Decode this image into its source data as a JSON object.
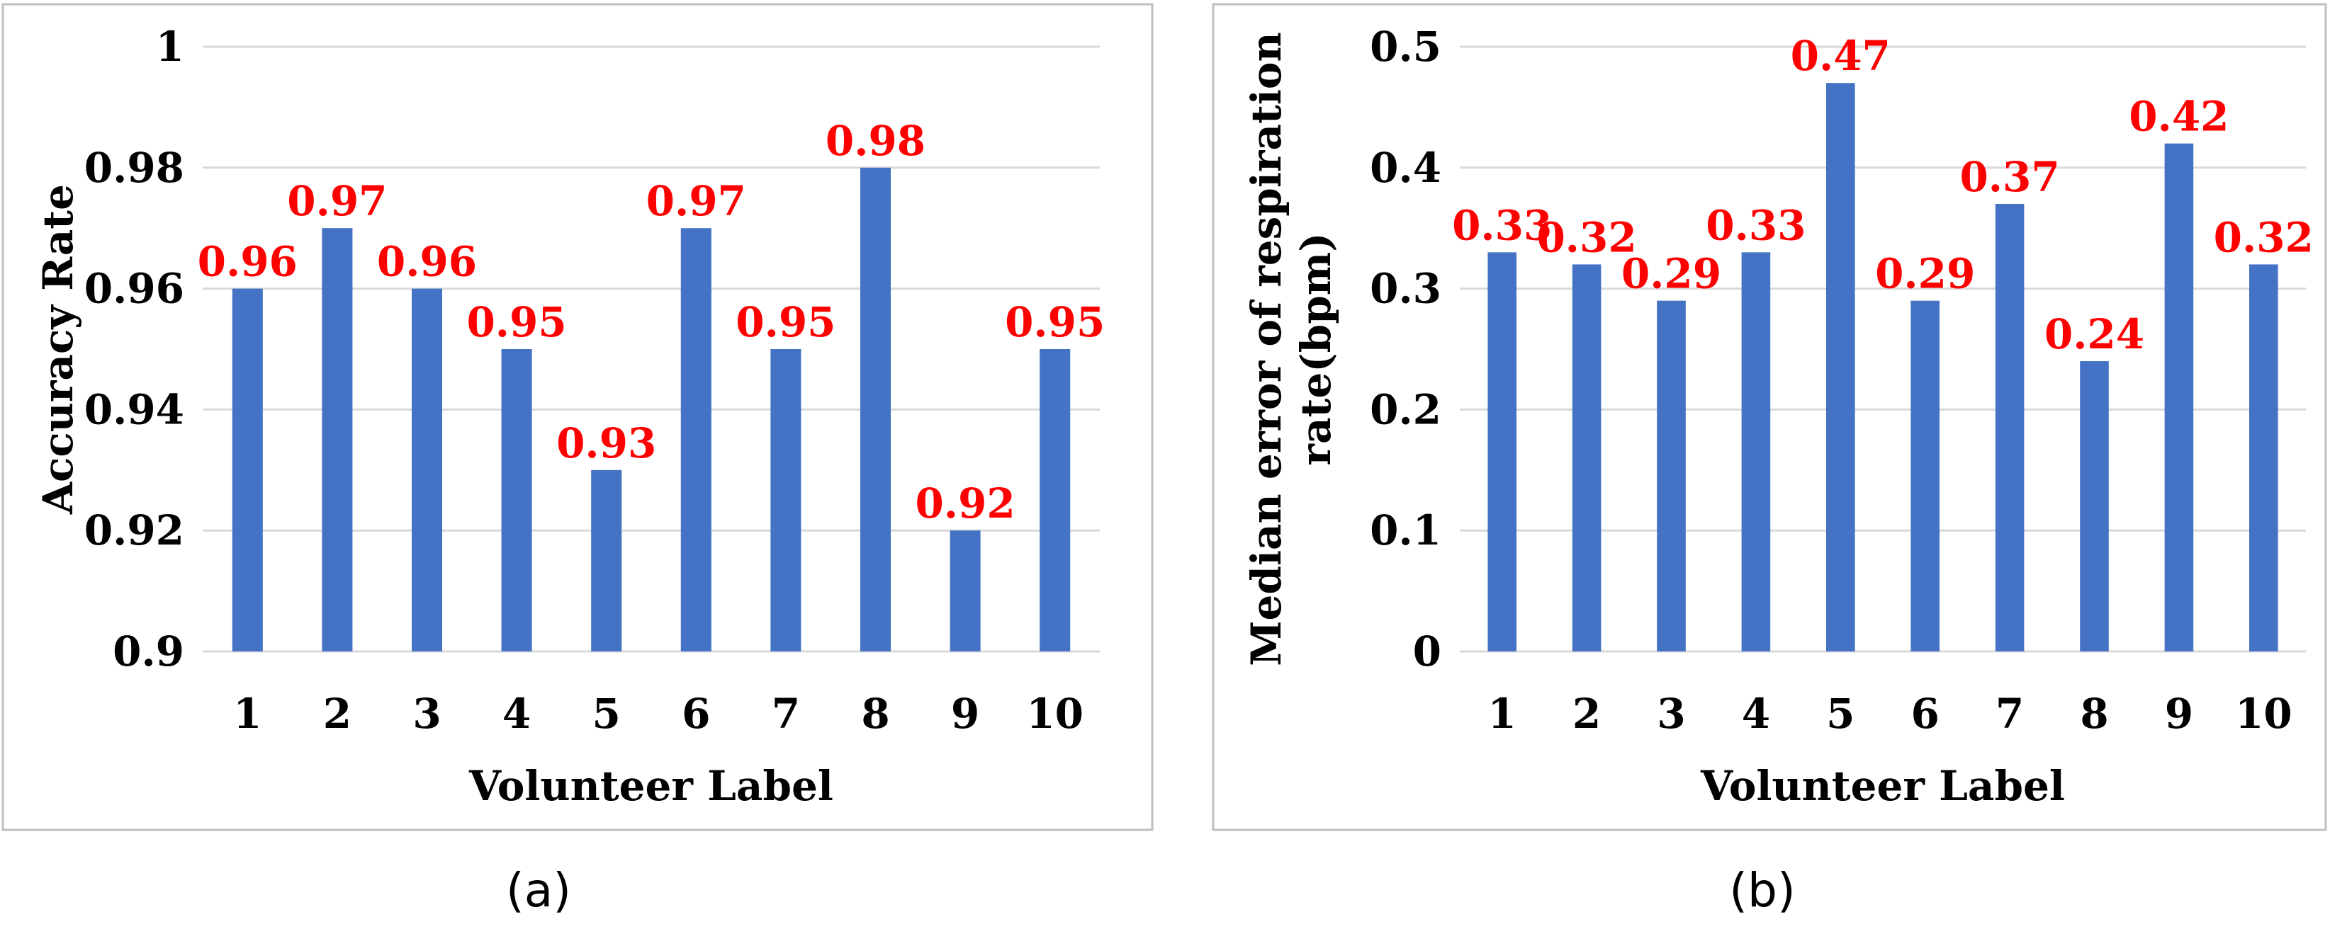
{
  "colors": {
    "bar": "#4472c4",
    "label": "#ff0000",
    "grid": "#d9d9d9",
    "frame": "#bfbfbf",
    "text": "#000000"
  },
  "chart_data": [
    {
      "type": "bar",
      "caption": "(a)",
      "categories": [
        "1",
        "2",
        "3",
        "4",
        "5",
        "6",
        "7",
        "8",
        "9",
        "10"
      ],
      "values": [
        0.96,
        0.97,
        0.96,
        0.95,
        0.93,
        0.97,
        0.95,
        0.98,
        0.92,
        0.95
      ],
      "data_labels": [
        "0.96",
        "0.97",
        "0.96",
        "0.95",
        "0.93",
        "0.97",
        "0.95",
        "0.98",
        "0.92",
        "0.95"
      ],
      "xlabel": "Volunteer Label",
      "ylabel": [
        "Accuracy Rate"
      ],
      "ylim": [
        0.9,
        1.0
      ],
      "yticks": [
        "0.9",
        "0.92",
        "0.94",
        "0.96",
        "0.98",
        "1"
      ],
      "grid": true,
      "legend": "none"
    },
    {
      "type": "bar",
      "caption": "(b)",
      "categories": [
        "1",
        "2",
        "3",
        "4",
        "5",
        "6",
        "7",
        "8",
        "9",
        "10"
      ],
      "values": [
        0.33,
        0.32,
        0.29,
        0.33,
        0.47,
        0.29,
        0.37,
        0.24,
        0.42,
        0.32
      ],
      "data_labels": [
        "0.33",
        "0.32",
        "0.29",
        "0.33",
        "0.47",
        "0.29",
        "0.37",
        "0.24",
        "0.42",
        "0.32"
      ],
      "xlabel": "Volunteer Label",
      "ylabel": [
        "Median error of respiration",
        "rate(bpm)"
      ],
      "ylim": [
        0,
        0.5
      ],
      "yticks": [
        "0",
        "0.1",
        "0.2",
        "0.3",
        "0.4",
        "0.5"
      ],
      "grid": true,
      "legend": "none"
    }
  ]
}
